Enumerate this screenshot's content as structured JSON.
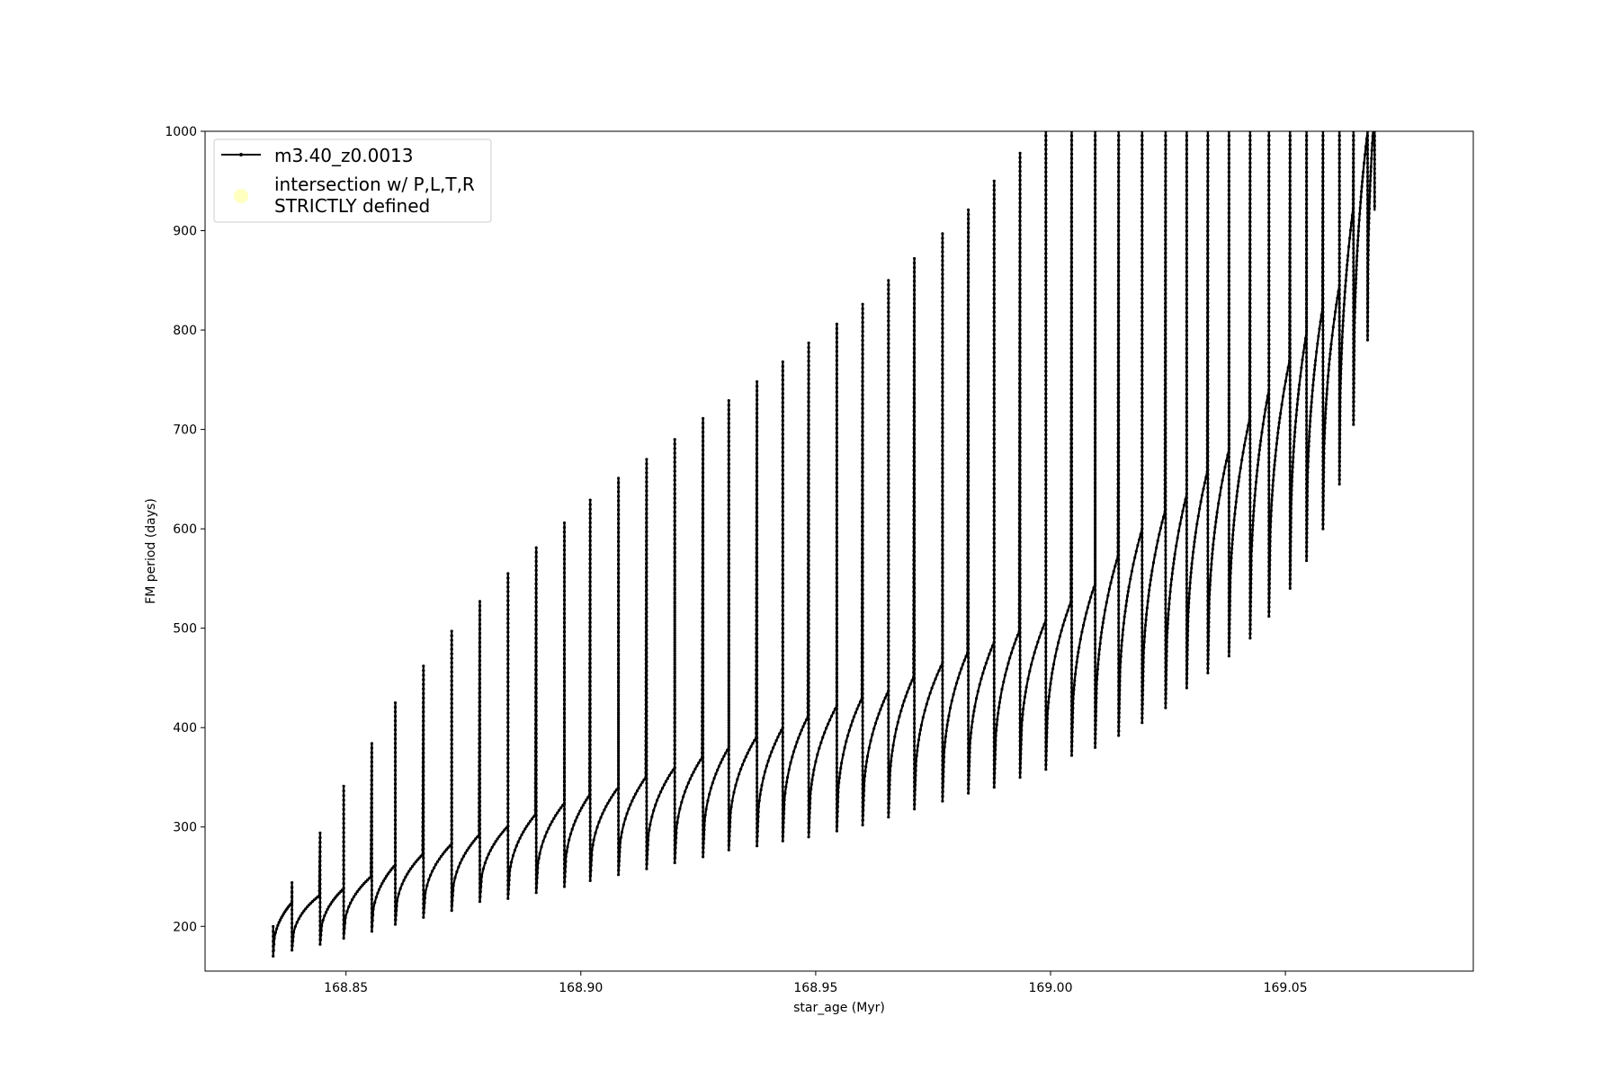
{
  "chart_data": {
    "type": "line",
    "xlabel": "star_age (Myr)",
    "ylabel": "FM period (days)",
    "xlim": [
      168.82,
      169.09
    ],
    "ylim": [
      155,
      1000
    ],
    "x_ticks": [
      "168.85",
      "168.90",
      "168.95",
      "169.00",
      "169.05"
    ],
    "y_ticks": [
      "200",
      "300",
      "400",
      "500",
      "600",
      "700",
      "800",
      "900",
      "1000"
    ],
    "grid": false,
    "legend_position": "upper-left",
    "legend": [
      {
        "label": "m3.40_z0.0013",
        "marker": "line-with-dots",
        "color": "#000000"
      },
      {
        "label_lines": [
          "intersection w/ P,L,T,R",
          "STRICTLY defined"
        ],
        "marker": "circle",
        "color": "#ffffc0"
      }
    ],
    "series": [
      {
        "name": "m3.40_z0.0013",
        "color": "#000000",
        "description_type": "thermal-pulse loops",
        "loops": [
          [
            168.8345,
            200,
            170,
            224,
            168.8385,
            244,
            176
          ],
          [
            168.8445,
            294,
            182,
            238,
            168.8495,
            341,
            188
          ],
          [
            168.8555,
            384,
            195,
            262,
            168.8605,
            425,
            202
          ],
          [
            168.8665,
            462,
            209,
            283,
            168.8725,
            497,
            216
          ],
          [
            168.8785,
            527,
            225,
            301,
            168.8845,
            555,
            228
          ],
          [
            168.8905,
            581,
            234,
            324,
            168.8965,
            606,
            240
          ],
          [
            168.902,
            629,
            246,
            340,
            168.908,
            651,
            252
          ],
          [
            168.914,
            670,
            258,
            360,
            168.92,
            690,
            264
          ],
          [
            168.926,
            711,
            270,
            380,
            168.9315,
            729,
            277
          ],
          [
            168.9375,
            748,
            281,
            400,
            168.943,
            768,
            286
          ],
          [
            168.9485,
            787,
            290,
            422,
            168.9545,
            806,
            296
          ],
          [
            168.96,
            826,
            302,
            437,
            168.9655,
            850,
            310
          ],
          [
            168.971,
            872,
            318,
            465,
            168.977,
            897,
            326
          ],
          [
            168.9825,
            921,
            334,
            486,
            168.988,
            950,
            340
          ],
          [
            168.9935,
            978,
            350,
            508,
            168.999,
            1000,
            358
          ],
          [
            169.0045,
            1000,
            372,
            545,
            169.0095,
            1000,
            380
          ],
          [
            169.0145,
            1000,
            392,
            600,
            169.0195,
            1000,
            405
          ],
          [
            169.0245,
            1000,
            420,
            635,
            169.029,
            1000,
            440
          ],
          [
            169.0335,
            1000,
            455,
            680,
            169.038,
            1000,
            472
          ],
          [
            169.0425,
            1000,
            490,
            740,
            169.0465,
            1000,
            512
          ],
          [
            169.051,
            1000,
            540,
            798,
            169.0545,
            1000,
            568
          ],
          [
            169.058,
            1000,
            600,
            845,
            169.0615,
            1000,
            645
          ],
          [
            169.0645,
            1000,
            705,
            1000,
            169.0675,
            1000,
            790
          ]
        ],
        "tail": [
          169.069,
          1000,
          920
        ]
      }
    ]
  }
}
